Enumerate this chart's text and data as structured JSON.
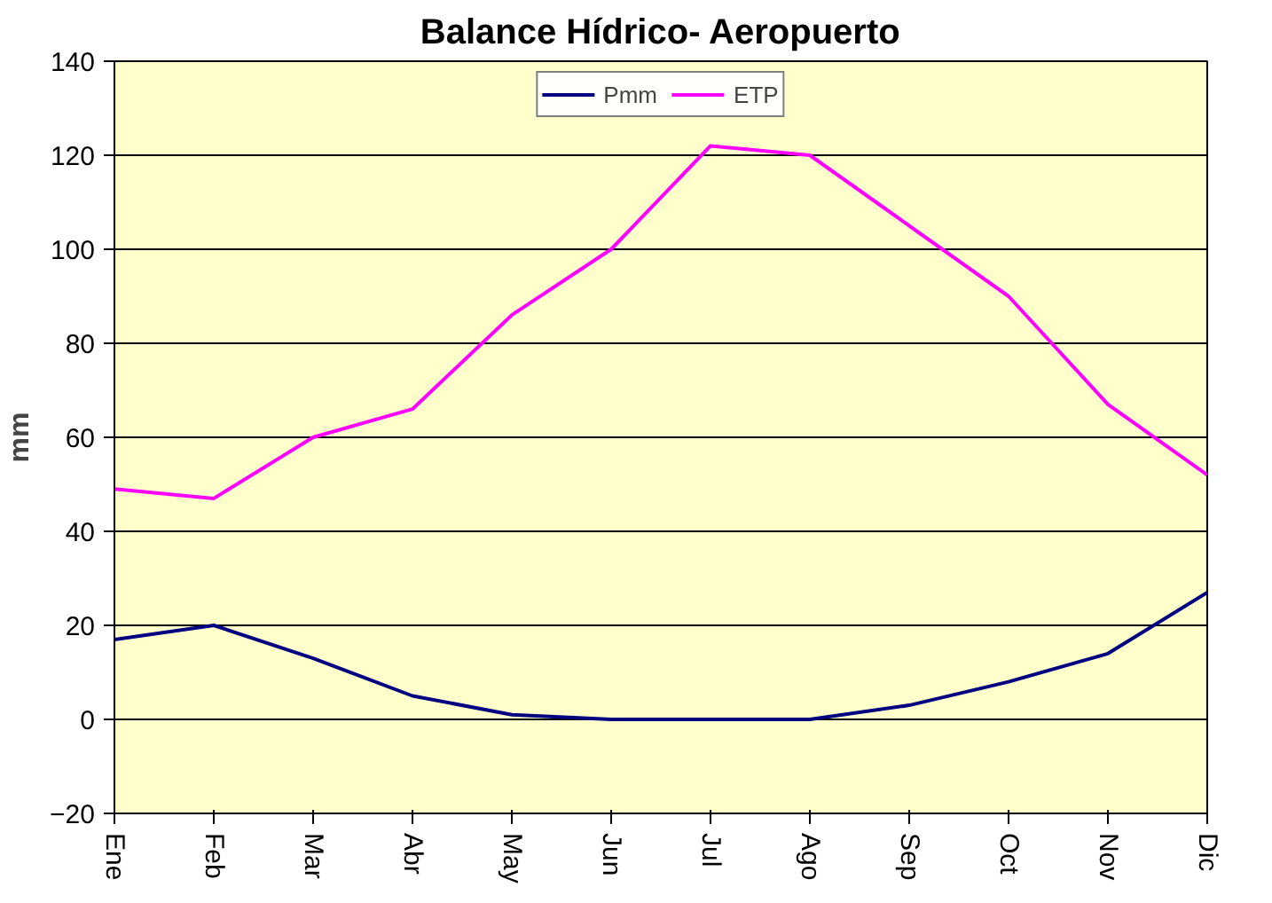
{
  "chart_data": {
    "type": "line",
    "title": "Balance Hídrico- Aeropuerto",
    "ylabel": "mm",
    "categories": [
      "Ene",
      "Feb",
      "Mar",
      "Abr",
      "May",
      "Jun",
      "Jul",
      "Ago",
      "Sep",
      "Oct",
      "Nov",
      "Dic"
    ],
    "series": [
      {
        "name": "Pmm",
        "color": "#000080",
        "values": [
          17,
          20,
          13,
          5,
          1,
          0,
          0,
          0,
          3,
          8,
          14,
          27
        ]
      },
      {
        "name": "ETP",
        "color": "#ff00ff",
        "values": [
          49,
          47,
          60,
          66,
          86,
          100,
          122,
          120,
          105,
          90,
          67,
          52
        ]
      }
    ],
    "ylim": [
      -20,
      140
    ],
    "yticks": [
      -20,
      0,
      20,
      40,
      60,
      80,
      100,
      120,
      140
    ],
    "grid": "y",
    "legend": "top",
    "marker": "none",
    "line_style": "solid"
  }
}
